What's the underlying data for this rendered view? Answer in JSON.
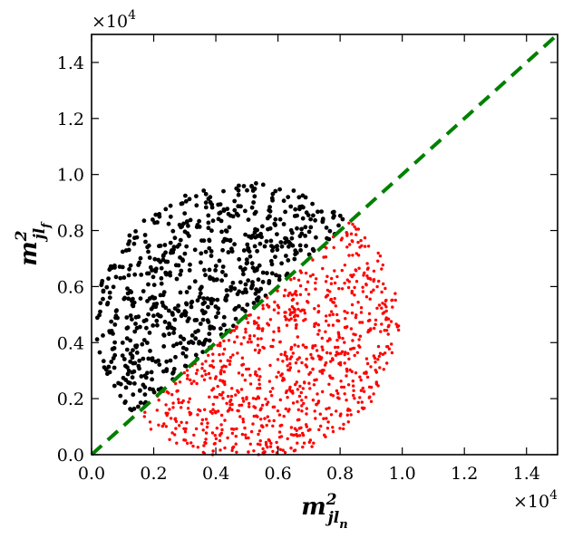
{
  "chart_data": {
    "type": "scatter",
    "title": "",
    "xlabel": {
      "base": "m",
      "sup": "2",
      "sub": "jl",
      "sub2": "n"
    },
    "ylabel": {
      "base": "m",
      "sup": "2",
      "sub": "jl",
      "sub2": "f"
    },
    "xlim": [
      0,
      15000
    ],
    "ylim": [
      0,
      15000
    ],
    "xticks": [
      0,
      2000,
      4000,
      6000,
      8000,
      10000,
      12000,
      14000
    ],
    "yticks": [
      0,
      2000,
      4000,
      6000,
      8000,
      10000,
      12000,
      14000
    ],
    "xtick_labels": [
      "0.0",
      "0.2",
      "0.4",
      "0.6",
      "0.8",
      "1.0",
      "1.2",
      "1.4"
    ],
    "ytick_labels": [
      "0.0",
      "0.2",
      "0.4",
      "0.6",
      "0.8",
      "1.0",
      "1.2",
      "1.4"
    ],
    "x_multiplier": {
      "base": "×10",
      "exp": "4"
    },
    "y_multiplier": {
      "base": "×10",
      "exp": "4"
    },
    "grid": false,
    "legend": "none",
    "point_region": {
      "center_x": 5000,
      "center_y": 4750,
      "radius_x": 4900,
      "radius_y": 4950,
      "ymin": 0
    },
    "series": [
      {
        "color": "#000000",
        "side": "above",
        "count": 700,
        "marker_radius": 2.4
      },
      {
        "color": "#ff0000",
        "side": "below",
        "count": 900,
        "marker_radius": 1.7
      }
    ],
    "reference_line": {
      "x": [
        0,
        15000
      ],
      "y": [
        0,
        15000
      ],
      "color": "#008000",
      "style": "dashed"
    }
  }
}
